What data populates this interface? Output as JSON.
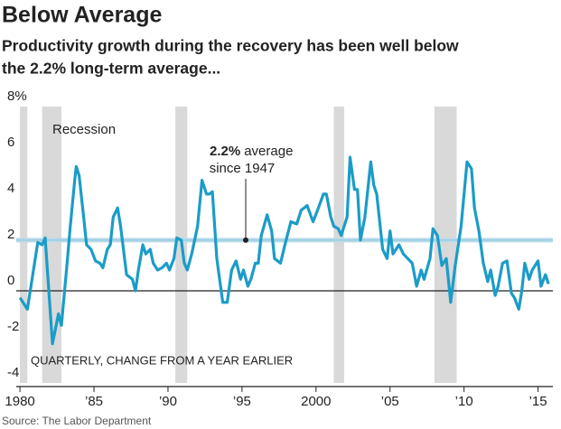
{
  "chart_data": {
    "type": "line",
    "title": "Below Average",
    "subtitle": [
      "Productivity growth during the recovery has been well below",
      "the 2.2% long-term average..."
    ],
    "note": "QUARTERLY, CHANGE FROM A YEAR EARLIER",
    "source": "Source: The Labor Department",
    "recession_label": "Recession",
    "recession_color": "#d9d9d9",
    "recessions": [
      [
        1980.0,
        1980.5
      ],
      [
        1981.5,
        1982.8
      ],
      [
        1990.5,
        1991.3
      ],
      [
        2001.2,
        2001.9
      ],
      [
        2008.0,
        2009.5
      ]
    ],
    "average": {
      "value": 2.2,
      "label": "2.2%",
      "text": [
        "average",
        "since 1947"
      ],
      "color": "#b9dcea"
    },
    "color": "#1b9cc8",
    "x": [
      1980.0,
      1980.5,
      1981.2,
      1981.5,
      1981.7,
      1982.2,
      1982.6,
      1982.8,
      1983.2,
      1983.4,
      1983.7,
      1983.8,
      1984.0,
      1984.3,
      1984.5,
      1984.8,
      1985.1,
      1985.4,
      1985.6,
      1985.9,
      1986.1,
      1986.3,
      1986.6,
      1986.8,
      1987.2,
      1987.6,
      1987.8,
      1988.0,
      1988.3,
      1988.5,
      1988.8,
      1989.0,
      1989.3,
      1989.6,
      1989.9,
      1990.1,
      1990.4,
      1990.6,
      1990.9,
      1991.1,
      1991.3,
      1991.6,
      1992.0,
      1992.3,
      1992.6,
      1992.8,
      1993.0,
      1993.3,
      1993.7,
      1994.0,
      1994.3,
      1994.6,
      1994.9,
      1995.1,
      1995.4,
      1995.6,
      1995.9,
      1996.1,
      1996.3,
      1996.7,
      1997.0,
      1997.2,
      1997.6,
      1997.9,
      1998.3,
      1998.7,
      1999.0,
      1999.4,
      1999.8,
      2000.1,
      2000.5,
      2000.7,
      2001.0,
      2001.2,
      2001.5,
      2001.7,
      2002.1,
      2002.3,
      2002.6,
      2002.8,
      2003.0,
      2003.3,
      2003.7,
      2003.9,
      2004.1,
      2004.5,
      2004.8,
      2005.0,
      2005.2,
      2005.6,
      2005.9,
      2006.2,
      2006.5,
      2006.8,
      2007.1,
      2007.3,
      2007.7,
      2007.9,
      2008.2,
      2008.5,
      2008.8,
      2009.1,
      2009.4,
      2009.8,
      2010.0,
      2010.2,
      2010.5,
      2010.7,
      2011.0,
      2011.3,
      2011.6,
      2011.8,
      2012.1,
      2012.3,
      2012.6,
      2012.9,
      2013.2,
      2013.4,
      2013.7,
      2013.9,
      2014.1,
      2014.4,
      2014.6,
      2015.0,
      2015.2,
      2015.5,
      2015.7
    ],
    "values": [
      -0.3,
      -0.8,
      2.1,
      2.0,
      2.3,
      -2.3,
      -1.0,
      -1.5,
      1.3,
      2.8,
      4.8,
      5.4,
      5.0,
      3.2,
      2.0,
      1.8,
      1.3,
      1.2,
      1.0,
      1.8,
      2.0,
      3.2,
      3.6,
      2.8,
      0.7,
      0.5,
      0.0,
      0.9,
      2.0,
      1.6,
      1.8,
      1.2,
      0.9,
      1.0,
      1.2,
      0.9,
      1.4,
      2.3,
      2.2,
      1.2,
      0.9,
      1.6,
      2.8,
      4.8,
      4.2,
      4.2,
      4.3,
      1.4,
      -0.5,
      -0.5,
      0.9,
      1.3,
      0.5,
      0.9,
      0.2,
      0.5,
      1.2,
      1.2,
      2.4,
      3.3,
      2.6,
      1.4,
      1.2,
      2.0,
      3.0,
      2.9,
      3.5,
      3.7,
      3.0,
      3.5,
      4.2,
      4.2,
      3.2,
      2.8,
      2.7,
      2.4,
      3.2,
      5.8,
      4.4,
      4.4,
      2.2,
      3.2,
      5.6,
      4.6,
      4.2,
      1.8,
      1.4,
      2.6,
      1.6,
      2.0,
      1.6,
      1.4,
      1.2,
      0.2,
      0.9,
      0.5,
      1.4,
      2.7,
      2.4,
      1.1,
      1.4,
      -0.5,
      1.1,
      2.8,
      4.2,
      5.6,
      5.3,
      3.6,
      2.6,
      1.2,
      0.4,
      0.9,
      -0.2,
      0.2,
      1.2,
      1.3,
      -0.1,
      -0.3,
      -0.8,
      0.0,
      1.2,
      0.5,
      0.9,
      1.3,
      0.2,
      0.7,
      0.3
    ],
    "xlim": [
      1979.75,
      2016
    ],
    "xticks": [
      {
        "value": 1980,
        "label": "1980"
      },
      {
        "value": 1985,
        "label": "’85"
      },
      {
        "value": 1990,
        "label": "’90"
      },
      {
        "value": 1995,
        "label": "’95"
      },
      {
        "value": 2000,
        "label": "2000"
      },
      {
        "value": 2005,
        "label": "’05"
      },
      {
        "value": 2010,
        "label": "’10"
      },
      {
        "value": 2015,
        "label": "’15"
      }
    ],
    "ylim": [
      -4,
      8
    ],
    "yticks": [
      {
        "value": 8,
        "label": "8%"
      },
      6,
      4,
      2,
      0,
      -2,
      -4
    ]
  }
}
